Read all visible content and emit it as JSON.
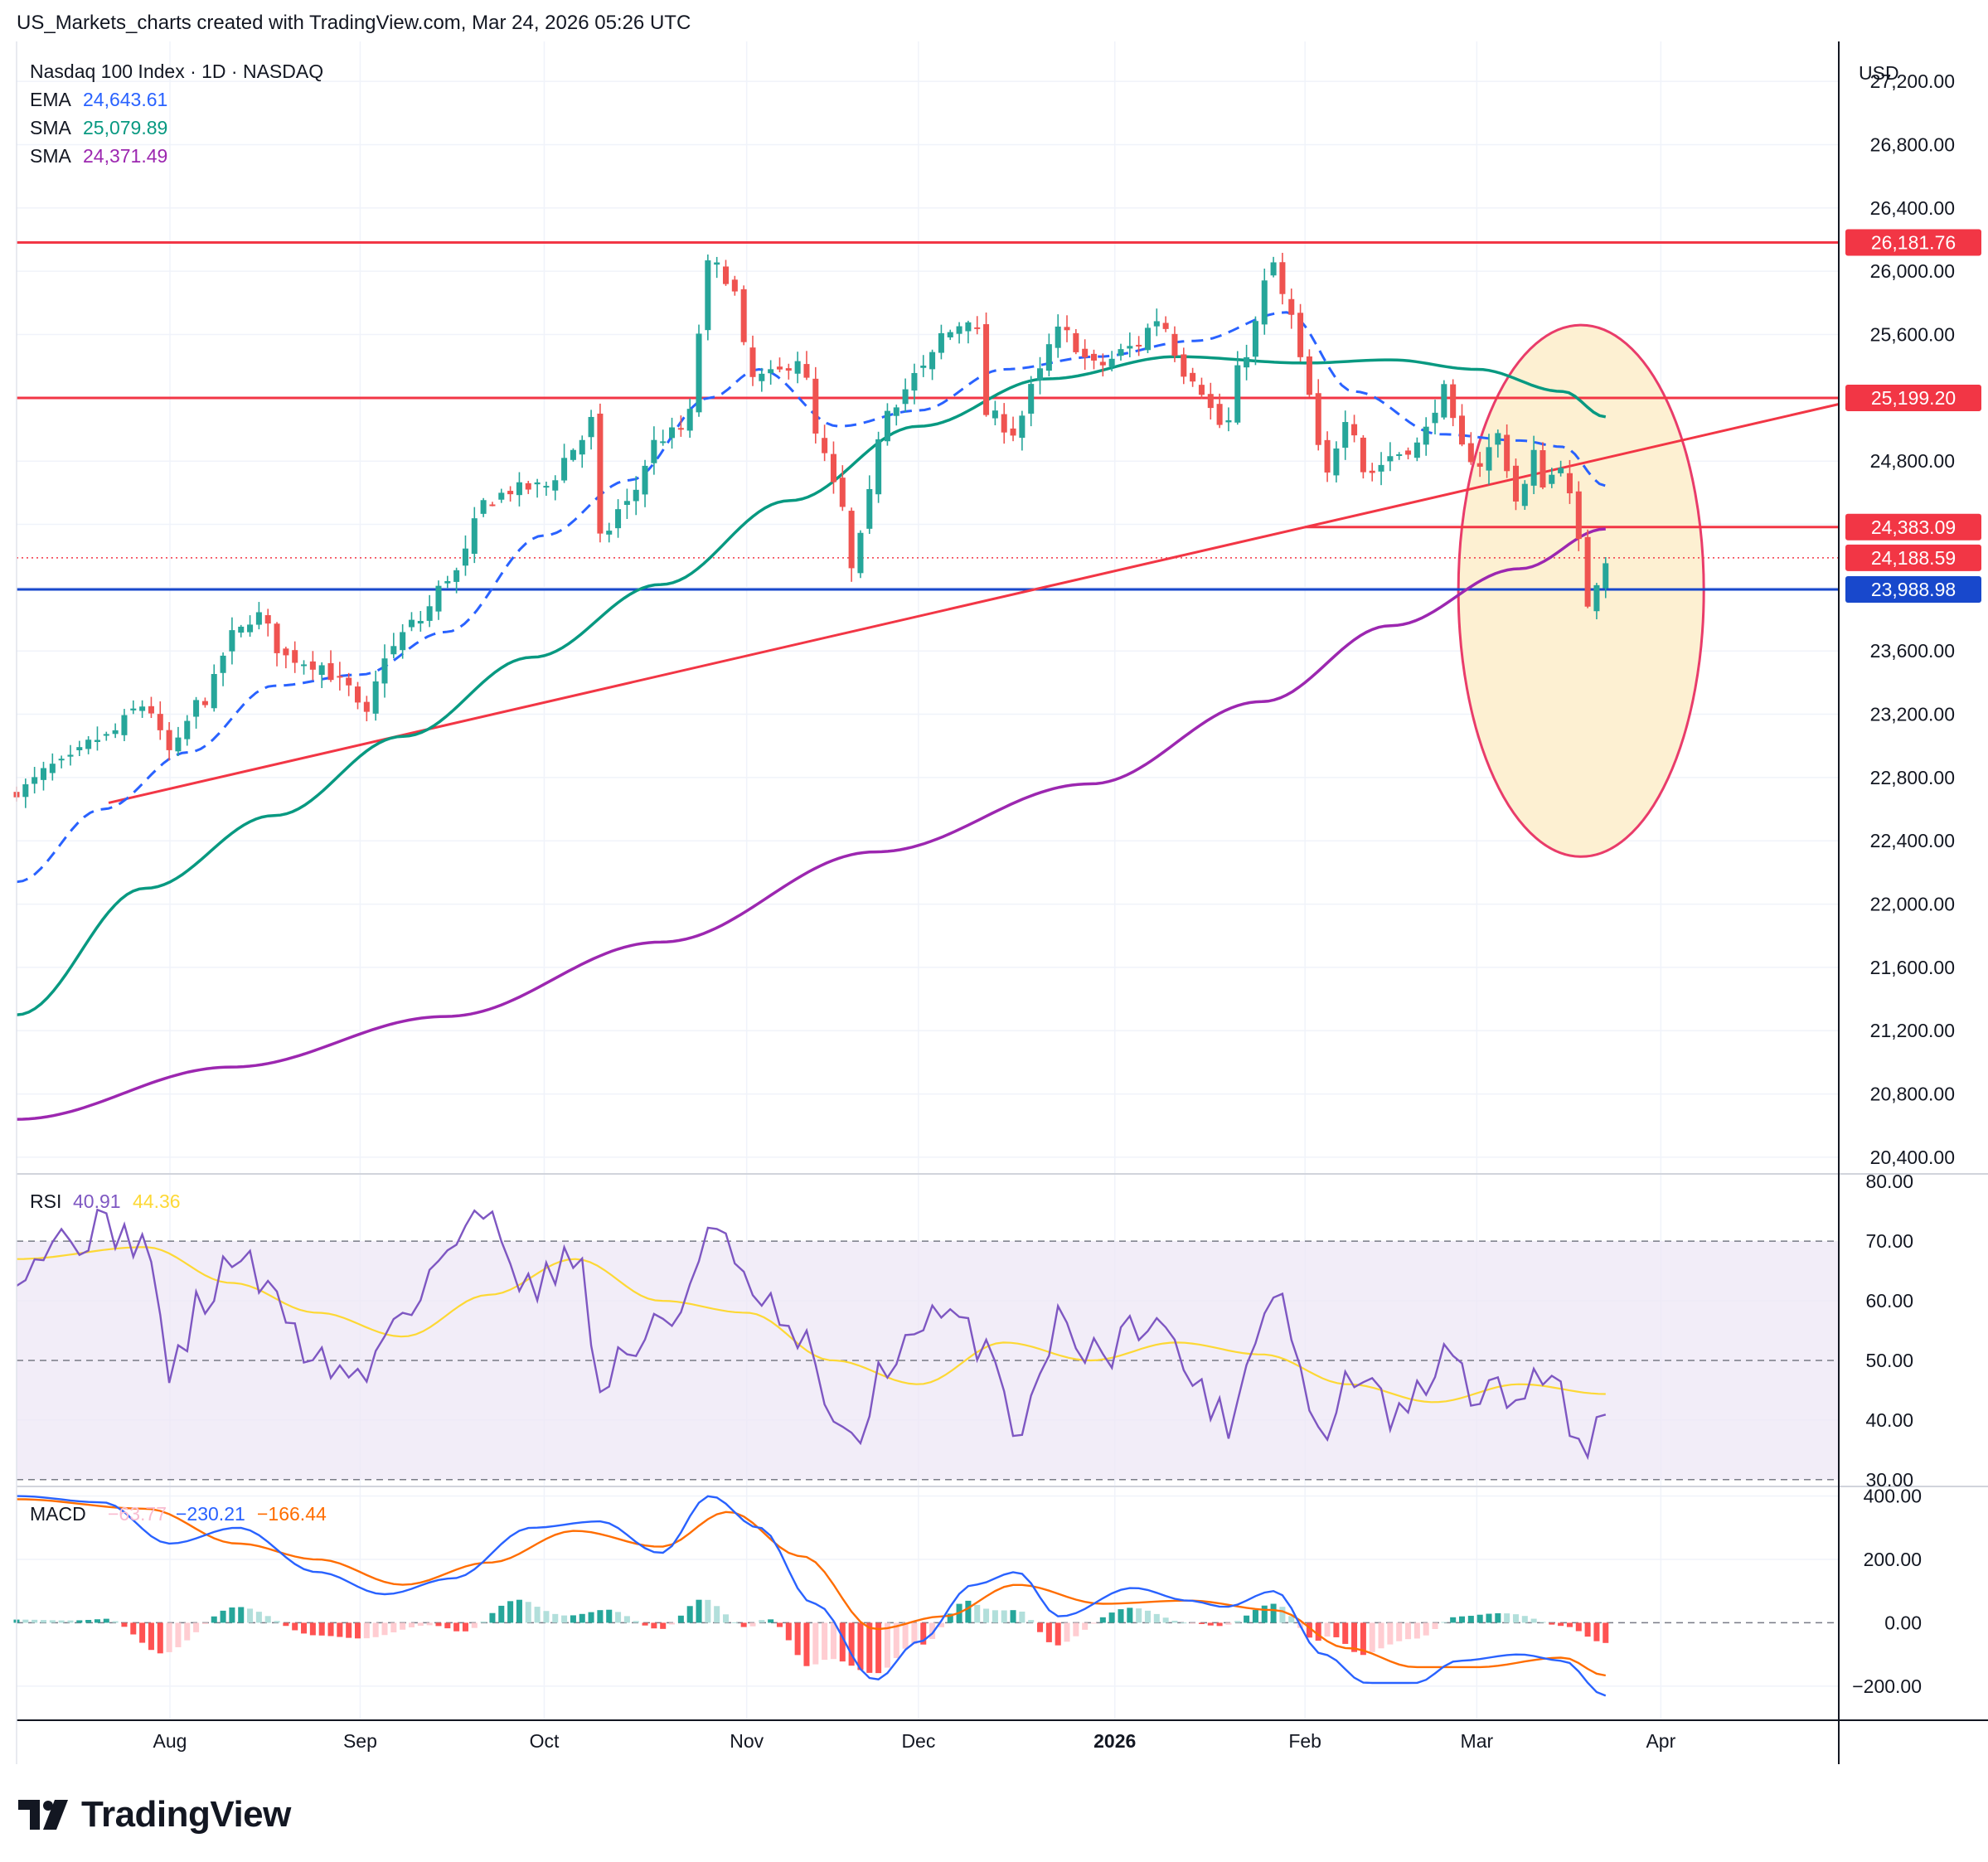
{
  "header": {
    "caption": "US_Markets_charts created with TradingView.com, Mar 24, 2026 05:26 UTC"
  },
  "footer": {
    "brand": "TradingView"
  },
  "colors": {
    "up": "#26a69a",
    "down": "#ef5350",
    "ema": "#2962ff",
    "sma_mid": "#089981",
    "sma_long": "#9c27b0",
    "level_red": "#f23645",
    "level_blue": "#1848cc",
    "rsi_line": "#7e57c2",
    "rsi_ma": "#fdd835",
    "macd": "#2962ff",
    "signal": "#ff6d00",
    "zone_fill": "#fdf0d2",
    "zone_stroke": "#e93c6a"
  },
  "chart_data": [
    {
      "type": "candlestick",
      "title": "Nasdaq 100 Index · 1D · NASDAQ",
      "currency": "USD",
      "price_axis_ticks": [
        "27,200.00",
        "26,800.00",
        "26,400.00",
        "26,000.00",
        "25,600.00",
        "25,200.00",
        "24,800.00",
        "24,400.00",
        "24,000.00",
        "23,600.00",
        "23,200.00",
        "22,800.00",
        "22,400.00",
        "22,000.00",
        "21,600.00",
        "21,200.00",
        "20,800.00",
        "20,400.00"
      ],
      "time_axis_labels": [
        {
          "label": "Aug",
          "date": "2025-08-01"
        },
        {
          "label": "Sep",
          "date": "2025-09-01"
        },
        {
          "label": "Oct",
          "date": "2025-10-01"
        },
        {
          "label": "Nov",
          "date": "2025-11-03"
        },
        {
          "label": "Dec",
          "date": "2025-12-01"
        },
        {
          "label": "2026",
          "date": "2026-01-02",
          "bold": true
        },
        {
          "label": "Feb",
          "date": "2026-02-02"
        },
        {
          "label": "Mar",
          "date": "2026-03-02"
        },
        {
          "label": "Apr",
          "date": "2026-04-01"
        }
      ],
      "ylim": [
        20300,
        27400
      ],
      "xlim": [
        "2025-07-07",
        "2026-04-30"
      ],
      "indicators": [
        {
          "name": "EMA",
          "value": "24,643.61",
          "color": "#2962ff"
        },
        {
          "name": "SMA",
          "value": "25,079.89",
          "color": "#089981"
        },
        {
          "name": "SMA",
          "value": "24,371.49",
          "color": "#9c27b0"
        }
      ],
      "horizontal_levels": [
        {
          "price": 26181.76,
          "label": "26,181.76",
          "color": "#f23645",
          "from": "2025-07-07"
        },
        {
          "price": 25199.2,
          "label": "25,199.20",
          "color": "#f23645",
          "from": "2025-07-07"
        },
        {
          "price": 24383.09,
          "label": "24,383.09",
          "color": "#f23645",
          "from": "2026-02-02"
        },
        {
          "price": 23988.98,
          "label": "23,988.98",
          "color": "#1848cc",
          "from": "2025-07-07"
        }
      ],
      "last_price": {
        "price": 24188.59,
        "label": "24,188.59",
        "color": "#f23645"
      },
      "trendline": {
        "from": {
          "date": "2025-07-22",
          "price": 22640
        },
        "to": {
          "date": "2026-04-30",
          "price": 25160
        },
        "color": "#f23645"
      },
      "highlight_zone": {
        "center": {
          "date": "2026-03-19",
          "price": 23980
        },
        "radius_days": 20,
        "radius_price": 1680
      },
      "ohlc_anchors": [
        [
          "2025-07-07",
          22720
        ],
        [
          "2025-07-14",
          22880
        ],
        [
          "2025-07-21",
          23050
        ],
        [
          "2025-07-28",
          23260
        ],
        [
          "2025-08-01",
          22960
        ],
        [
          "2025-08-06",
          23280
        ],
        [
          "2025-08-12",
          23720
        ],
        [
          "2025-08-15",
          23830
        ],
        [
          "2025-08-20",
          23560
        ],
        [
          "2025-08-25",
          23520
        ],
        [
          "2025-08-29",
          23400
        ],
        [
          "2025-09-02",
          23180
        ],
        [
          "2025-09-05",
          23580
        ],
        [
          "2025-09-10",
          23780
        ],
        [
          "2025-09-16",
          24080
        ],
        [
          "2025-09-22",
          24560
        ],
        [
          "2025-09-26",
          24620
        ],
        [
          "2025-10-01",
          24640
        ],
        [
          "2025-10-06",
          24880
        ],
        [
          "2025-10-09",
          25060
        ],
        [
          "2025-10-10",
          24300
        ],
        [
          "2025-10-14",
          24520
        ],
        [
          "2025-10-20",
          24950
        ],
        [
          "2025-10-24",
          25010
        ],
        [
          "2025-10-28",
          26050
        ],
        [
          "2025-10-31",
          25960
        ],
        [
          "2025-11-04",
          25320
        ],
        [
          "2025-11-07",
          25340
        ],
        [
          "2025-11-12",
          25460
        ],
        [
          "2025-11-14",
          24960
        ],
        [
          "2025-11-18",
          24600
        ],
        [
          "2025-11-20",
          24100
        ],
        [
          "2025-11-21",
          24280
        ],
        [
          "2025-11-26",
          25150
        ],
        [
          "2025-12-02",
          25380
        ],
        [
          "2025-12-05",
          25600
        ],
        [
          "2025-12-10",
          25720
        ],
        [
          "2025-12-12",
          25100
        ],
        [
          "2025-12-17",
          24980
        ],
        [
          "2025-12-19",
          25250
        ],
        [
          "2025-12-24",
          25620
        ],
        [
          "2025-12-30",
          25400
        ],
        [
          "2026-01-05",
          25520
        ],
        [
          "2026-01-09",
          25700
        ],
        [
          "2026-01-14",
          25350
        ],
        [
          "2026-01-20",
          25010
        ],
        [
          "2026-01-23",
          25480
        ],
        [
          "2026-01-28",
          26050
        ],
        [
          "2026-01-30",
          25760
        ],
        [
          "2026-02-03",
          25200
        ],
        [
          "2026-02-05",
          24680
        ],
        [
          "2026-02-09",
          25100
        ],
        [
          "2026-02-12",
          24720
        ],
        [
          "2026-02-17",
          24850
        ],
        [
          "2026-02-20",
          24900
        ],
        [
          "2026-02-25",
          25250
        ],
        [
          "2026-02-27",
          24880
        ],
        [
          "2026-03-03",
          24780
        ],
        [
          "2026-03-05",
          24980
        ],
        [
          "2026-03-09",
          24520
        ],
        [
          "2026-03-11",
          24850
        ],
        [
          "2026-03-13",
          24660
        ],
        [
          "2026-03-16",
          24800
        ],
        [
          "2026-03-18",
          24420
        ],
        [
          "2026-03-19",
          24200
        ],
        [
          "2026-03-20",
          23900
        ],
        [
          "2026-03-23",
          24188.59
        ]
      ],
      "ema_anchors": [
        [
          "2025-07-07",
          22140
        ],
        [
          "2025-07-21",
          22600
        ],
        [
          "2025-08-04",
          22960
        ],
        [
          "2025-08-18",
          23380
        ],
        [
          "2025-09-01",
          23450
        ],
        [
          "2025-09-15",
          23720
        ],
        [
          "2025-10-01",
          24330
        ],
        [
          "2025-10-15",
          24680
        ],
        [
          "2025-10-28",
          25200
        ],
        [
          "2025-11-05",
          25380
        ],
        [
          "2025-11-18",
          25020
        ],
        [
          "2025-12-01",
          25120
        ],
        [
          "2025-12-15",
          25380
        ],
        [
          "2025-12-30",
          25460
        ],
        [
          "2026-01-15",
          25560
        ],
        [
          "2026-01-30",
          25740
        ],
        [
          "2026-02-10",
          25240
        ],
        [
          "2026-02-24",
          24970
        ],
        [
          "2026-03-09",
          24930
        ],
        [
          "2026-03-16",
          24890
        ],
        [
          "2026-03-23",
          24643.61
        ]
      ],
      "sma_mid_anchors": [
        [
          "2025-07-07",
          21300
        ],
        [
          "2025-07-28",
          22100
        ],
        [
          "2025-08-18",
          22560
        ],
        [
          "2025-09-08",
          23060
        ],
        [
          "2025-09-29",
          23560
        ],
        [
          "2025-10-20",
          24020
        ],
        [
          "2025-11-10",
          24550
        ],
        [
          "2025-12-01",
          25020
        ],
        [
          "2025-12-22",
          25320
        ],
        [
          "2026-01-12",
          25460
        ],
        [
          "2026-02-02",
          25420
        ],
        [
          "2026-02-16",
          25440
        ],
        [
          "2026-03-02",
          25380
        ],
        [
          "2026-03-16",
          25240
        ],
        [
          "2026-03-23",
          25079.89
        ]
      ],
      "sma_long_anchors": [
        [
          "2025-07-07",
          20640
        ],
        [
          "2025-08-11",
          20970
        ],
        [
          "2025-09-15",
          21290
        ],
        [
          "2025-10-20",
          21760
        ],
        [
          "2025-11-24",
          22330
        ],
        [
          "2025-12-29",
          22760
        ],
        [
          "2026-01-26",
          23280
        ],
        [
          "2026-02-16",
          23760
        ],
        [
          "2026-03-09",
          24120
        ],
        [
          "2026-03-23",
          24371.49
        ]
      ]
    },
    {
      "type": "line",
      "title": "RSI",
      "values_shown": [
        {
          "value": "40.91",
          "color": "#7e57c2"
        },
        {
          "value": "44.36",
          "color": "#fdd835"
        }
      ],
      "axis_ticks": [
        "80.00",
        "70.00",
        "60.00",
        "50.00",
        "40.00",
        "30.00"
      ],
      "ylim": [
        29,
        81
      ],
      "band": [
        30,
        70
      ],
      "midline": 50,
      "rsi_anchors": [
        [
          "2025-07-07",
          66
        ],
        [
          "2025-07-14",
          70
        ],
        [
          "2025-07-21",
          72
        ],
        [
          "2025-07-28",
          70
        ],
        [
          "2025-08-01",
          48
        ],
        [
          "2025-08-06",
          59
        ],
        [
          "2025-08-12",
          68
        ],
        [
          "2025-08-18",
          60
        ],
        [
          "2025-08-25",
          50
        ],
        [
          "2025-09-01",
          47
        ],
        [
          "2025-09-08",
          59
        ],
        [
          "2025-09-16",
          69
        ],
        [
          "2025-09-22",
          75
        ],
        [
          "2025-09-29",
          62
        ],
        [
          "2025-10-06",
          69
        ],
        [
          "2025-10-10",
          46
        ],
        [
          "2025-10-15",
          52
        ],
        [
          "2025-10-22",
          57
        ],
        [
          "2025-10-28",
          72
        ],
        [
          "2025-11-04",
          61
        ],
        [
          "2025-11-12",
          52
        ],
        [
          "2025-11-20",
          35
        ],
        [
          "2025-11-26",
          50
        ],
        [
          "2025-12-05",
          57
        ],
        [
          "2025-12-12",
          53
        ],
        [
          "2025-12-17",
          39
        ],
        [
          "2025-12-24",
          56
        ],
        [
          "2025-12-31",
          51
        ],
        [
          "2026-01-08",
          58
        ],
        [
          "2026-01-14",
          48
        ],
        [
          "2026-01-20",
          40
        ],
        [
          "2026-01-28",
          62
        ],
        [
          "2026-02-05",
          37
        ],
        [
          "2026-02-10",
          48
        ],
        [
          "2026-02-17",
          40
        ],
        [
          "2026-02-25",
          50
        ],
        [
          "2026-03-03",
          44
        ],
        [
          "2026-03-09",
          44
        ],
        [
          "2026-03-13",
          49
        ],
        [
          "2026-03-18",
          40
        ],
        [
          "2026-03-20",
          35
        ],
        [
          "2026-03-23",
          40.91
        ]
      ],
      "rsi_ma_anchors": [
        [
          "2025-07-07",
          67
        ],
        [
          "2025-07-28",
          69
        ],
        [
          "2025-08-11",
          63
        ],
        [
          "2025-08-25",
          58
        ],
        [
          "2025-09-08",
          54
        ],
        [
          "2025-09-22",
          61
        ],
        [
          "2025-10-06",
          67
        ],
        [
          "2025-10-20",
          60
        ],
        [
          "2025-11-03",
          58
        ],
        [
          "2025-11-17",
          50
        ],
        [
          "2025-12-01",
          46
        ],
        [
          "2025-12-15",
          53
        ],
        [
          "2025-12-29",
          50
        ],
        [
          "2026-01-12",
          53
        ],
        [
          "2026-01-26",
          51
        ],
        [
          "2026-02-09",
          46
        ],
        [
          "2026-02-23",
          43
        ],
        [
          "2026-03-09",
          46
        ],
        [
          "2026-03-23",
          44.36
        ]
      ]
    },
    {
      "type": "bar",
      "title": "MACD",
      "values_shown": [
        {
          "value": "−63.77",
          "color": "#f8bbd0"
        },
        {
          "value": "−230.21",
          "color": "#2962ff"
        },
        {
          "value": "−166.44",
          "color": "#ff6d00"
        }
      ],
      "axis_ticks": [
        "400.00",
        "200.00",
        "0.00",
        "−200.00"
      ],
      "ylim": [
        -305,
        425
      ],
      "macd_anchors": [
        [
          "2025-07-07",
          400
        ],
        [
          "2025-07-21",
          380
        ],
        [
          "2025-08-01",
          250
        ],
        [
          "2025-08-12",
          300
        ],
        [
          "2025-08-25",
          160
        ],
        [
          "2025-09-05",
          90
        ],
        [
          "2025-09-16",
          140
        ],
        [
          "2025-09-29",
          300
        ],
        [
          "2025-10-10",
          320
        ],
        [
          "2025-10-20",
          220
        ],
        [
          "2025-10-28",
          400
        ],
        [
          "2025-11-05",
          300
        ],
        [
          "2025-11-14",
          60
        ],
        [
          "2025-11-24",
          -180
        ],
        [
          "2025-12-01",
          -60
        ],
        [
          "2025-12-10",
          120
        ],
        [
          "2025-12-17",
          160
        ],
        [
          "2025-12-24",
          20
        ],
        [
          "2026-01-05",
          110
        ],
        [
          "2026-01-14",
          70
        ],
        [
          "2026-01-20",
          50
        ],
        [
          "2026-01-28",
          100
        ],
        [
          "2026-02-05",
          -100
        ],
        [
          "2026-02-12",
          -190
        ],
        [
          "2026-02-20",
          -190
        ],
        [
          "2026-02-27",
          -120
        ],
        [
          "2026-03-09",
          -100
        ],
        [
          "2026-03-16",
          -120
        ],
        [
          "2026-03-23",
          -230.21
        ]
      ],
      "signal_anchors": [
        [
          "2025-07-07",
          390
        ],
        [
          "2025-07-28",
          360
        ],
        [
          "2025-08-12",
          250
        ],
        [
          "2025-08-25",
          200
        ],
        [
          "2025-09-08",
          120
        ],
        [
          "2025-09-22",
          190
        ],
        [
          "2025-10-06",
          290
        ],
        [
          "2025-10-20",
          240
        ],
        [
          "2025-10-31",
          350
        ],
        [
          "2025-11-12",
          210
        ],
        [
          "2025-11-24",
          -20
        ],
        [
          "2025-12-05",
          20
        ],
        [
          "2025-12-17",
          120
        ],
        [
          "2025-12-31",
          60
        ],
        [
          "2026-01-14",
          70
        ],
        [
          "2026-01-28",
          40
        ],
        [
          "2026-02-09",
          -80
        ],
        [
          "2026-02-20",
          -140
        ],
        [
          "2026-03-02",
          -140
        ],
        [
          "2026-03-16",
          -110
        ],
        [
          "2026-03-23",
          -166.44
        ]
      ]
    }
  ]
}
